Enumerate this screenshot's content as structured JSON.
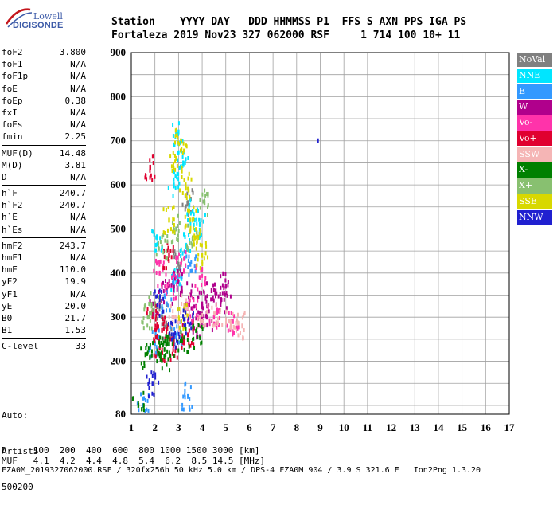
{
  "logo": {
    "brand_top": "Lowell",
    "brand_bottom": "DIGISONDE"
  },
  "header": {
    "line1": "Station    YYYY DAY   DDD HHMMSS P1  FFS S AXN PPS IGA PS",
    "line2": "Fortaleza 2019 Nov23 327 062000 RSF     1 714 100 10+ 11"
  },
  "params": {
    "group1": [
      {
        "label": "foF2",
        "value": "3.800"
      },
      {
        "label": "foF1",
        "value": "N/A"
      },
      {
        "label": "foF1p",
        "value": "N/A"
      },
      {
        "label": "foE",
        "value": "N/A"
      },
      {
        "label": "foEp",
        "value": "0.38"
      },
      {
        "label": "fxI",
        "value": "N/A"
      },
      {
        "label": "foEs",
        "value": "N/A"
      },
      {
        "label": "fmin",
        "value": "2.25"
      }
    ],
    "group2": [
      {
        "label": "MUF(D)",
        "value": "14.48"
      },
      {
        "label": "M(D)",
        "value": "3.81"
      },
      {
        "label": "D",
        "value": "N/A"
      }
    ],
    "group3": [
      {
        "label": "h`F",
        "value": "240.7"
      },
      {
        "label": "h`F2",
        "value": "240.7"
      },
      {
        "label": "h`E",
        "value": "N/A"
      },
      {
        "label": "h`Es",
        "value": "N/A"
      }
    ],
    "group4": [
      {
        "label": "hmF2",
        "value": "243.7"
      },
      {
        "label": "hmF1",
        "value": "N/A"
      },
      {
        "label": "hmE",
        "value": "110.0"
      },
      {
        "label": "yF2",
        "value": "19.9"
      },
      {
        "label": "yF1",
        "value": "N/A"
      },
      {
        "label": "yE",
        "value": "20.0"
      },
      {
        "label": "B0",
        "value": "21.7"
      },
      {
        "label": "B1",
        "value": "1.53"
      }
    ],
    "group5": [
      {
        "label": "C-level",
        "value": "33"
      }
    ]
  },
  "auto": {
    "line1": "Auto:",
    "line2": "Artist5",
    "line3": "500200"
  },
  "legend": [
    {
      "label": "NoVal",
      "color": "#808080",
      "text_color": "#ffffff"
    },
    {
      "label": "NNE",
      "color": "#00e5ff",
      "text_color": "#ffffff"
    },
    {
      "label": "E",
      "color": "#3399ff",
      "text_color": "#ffffff"
    },
    {
      "label": "W",
      "color": "#b0008c",
      "text_color": "#ffffff"
    },
    {
      "label": "Vo-",
      "color": "#ff33aa",
      "text_color": "#ffffff"
    },
    {
      "label": "Vo+",
      "color": "#e00030",
      "text_color": "#ffffff"
    },
    {
      "label": "SSW",
      "color": "#f5b5b5",
      "text_color": "#ffffff"
    },
    {
      "label": "X-",
      "color": "#008000",
      "text_color": "#ffffff"
    },
    {
      "label": "X+",
      "color": "#88c070",
      "text_color": "#ffffff"
    },
    {
      "label": "SSE",
      "color": "#d8d800",
      "text_color": "#ffffff"
    },
    {
      "label": "NNW",
      "color": "#2020d0",
      "text_color": "#ffffff"
    }
  ],
  "footer": {
    "line1": "D     100  200  400  600  800 1000 1500 3000 [km]",
    "line2": "MUF   4.1  4.2  4.4  4.8  5.4  6.2  8.5 14.5 [MHz]",
    "line3": "FZA0M_2019327062000.RSF / 320fx256h 50 kHz 5.0 km / DPS-4 FZA0M 904 / 3.9 S 321.6 E   Ion2Png 1.3.20"
  },
  "chart_data": {
    "type": "scatter",
    "title": "",
    "xlabel": "",
    "ylabel": "",
    "xlim": [
      1,
      17
    ],
    "ylim": [
      80,
      900
    ],
    "x_ticks": [
      "1",
      "2",
      "3",
      "4",
      "5",
      "6",
      "7",
      "8",
      "9",
      "10",
      "11",
      "12",
      "13",
      "14",
      "15",
      "16",
      "17"
    ],
    "y_ticks": [
      "80",
      "200",
      "300",
      "400",
      "500",
      "600",
      "700",
      "800",
      "900"
    ],
    "y_tick_values": [
      80,
      200,
      300,
      400,
      500,
      600,
      700,
      800,
      900
    ],
    "grid": true,
    "series": [
      {
        "name": "NoVal",
        "color": "#808080",
        "points": [
          [
            2.3,
            300
          ],
          [
            3.0,
            420
          ],
          [
            3.4,
            560
          ],
          [
            2.6,
            260
          ]
        ]
      },
      {
        "name": "NNE",
        "color": "#00e5ff",
        "points": [
          [
            3.0,
            720
          ],
          [
            3.2,
            650
          ],
          [
            2.8,
            600
          ],
          [
            3.6,
            540
          ],
          [
            2.1,
            480
          ],
          [
            2.9,
            380
          ],
          [
            3.3,
            460
          ],
          [
            3.9,
            510
          ]
        ]
      },
      {
        "name": "E",
        "color": "#3399ff",
        "points": [
          [
            2.0,
            240
          ],
          [
            2.5,
            330
          ],
          [
            3.0,
            380
          ],
          [
            3.5,
            420
          ],
          [
            3.4,
            120
          ],
          [
            1.5,
            100
          ],
          [
            2.9,
            260
          ]
        ]
      },
      {
        "name": "W",
        "color": "#b0008c",
        "points": [
          [
            2.0,
            330
          ],
          [
            2.5,
            360
          ],
          [
            3.0,
            380
          ],
          [
            3.5,
            350
          ],
          [
            4.0,
            330
          ],
          [
            4.4,
            360
          ],
          [
            4.8,
            340
          ],
          [
            5.0,
            370
          ],
          [
            4.2,
            300
          ],
          [
            3.8,
            280
          ]
        ]
      },
      {
        "name": "Vo-",
        "color": "#ff33aa",
        "points": [
          [
            2.2,
            400
          ],
          [
            2.7,
            370
          ],
          [
            3.1,
            420
          ],
          [
            3.6,
            320
          ],
          [
            4.5,
            300
          ],
          [
            5.3,
            290
          ],
          [
            3.9,
            390
          ]
        ]
      },
      {
        "name": "Vo+",
        "color": "#e00030",
        "points": [
          [
            1.8,
            640
          ],
          [
            1.9,
            300
          ],
          [
            2.3,
            270
          ],
          [
            2.9,
            230
          ],
          [
            3.4,
            260
          ],
          [
            2.2,
            230
          ],
          [
            2.6,
            440
          ]
        ]
      },
      {
        "name": "SSW",
        "color": "#f5b5b5",
        "points": [
          [
            2.8,
            300
          ],
          [
            3.3,
            320
          ],
          [
            4.0,
            300
          ],
          [
            5.2,
            290
          ],
          [
            5.7,
            280
          ],
          [
            4.6,
            310
          ]
        ]
      },
      {
        "name": "X-",
        "color": "#008000",
        "points": [
          [
            1.3,
            100
          ],
          [
            1.6,
            215
          ],
          [
            2.1,
            225
          ],
          [
            2.6,
            240
          ],
          [
            3.2,
            250
          ],
          [
            3.8,
            255
          ],
          [
            2.4,
            210
          ]
        ]
      },
      {
        "name": "X+",
        "color": "#88c070",
        "points": [
          [
            1.7,
            300
          ],
          [
            2.3,
            460
          ],
          [
            2.9,
            500
          ],
          [
            3.6,
            480
          ],
          [
            4.1,
            560
          ],
          [
            2.0,
            330
          ]
        ]
      },
      {
        "name": "SSE",
        "color": "#d8d800",
        "points": [
          [
            3.1,
            700
          ],
          [
            2.9,
            660
          ],
          [
            3.3,
            600
          ],
          [
            3.5,
            520
          ],
          [
            3.7,
            480
          ],
          [
            4.0,
            440
          ],
          [
            2.6,
            520
          ],
          [
            3.2,
            300
          ]
        ]
      },
      {
        "name": "NNW",
        "color": "#2020d0",
        "points": [
          [
            1.9,
            150
          ],
          [
            2.2,
            330
          ],
          [
            2.8,
            260
          ],
          [
            8.9,
            700
          ],
          [
            3.4,
            290
          ]
        ]
      }
    ]
  }
}
